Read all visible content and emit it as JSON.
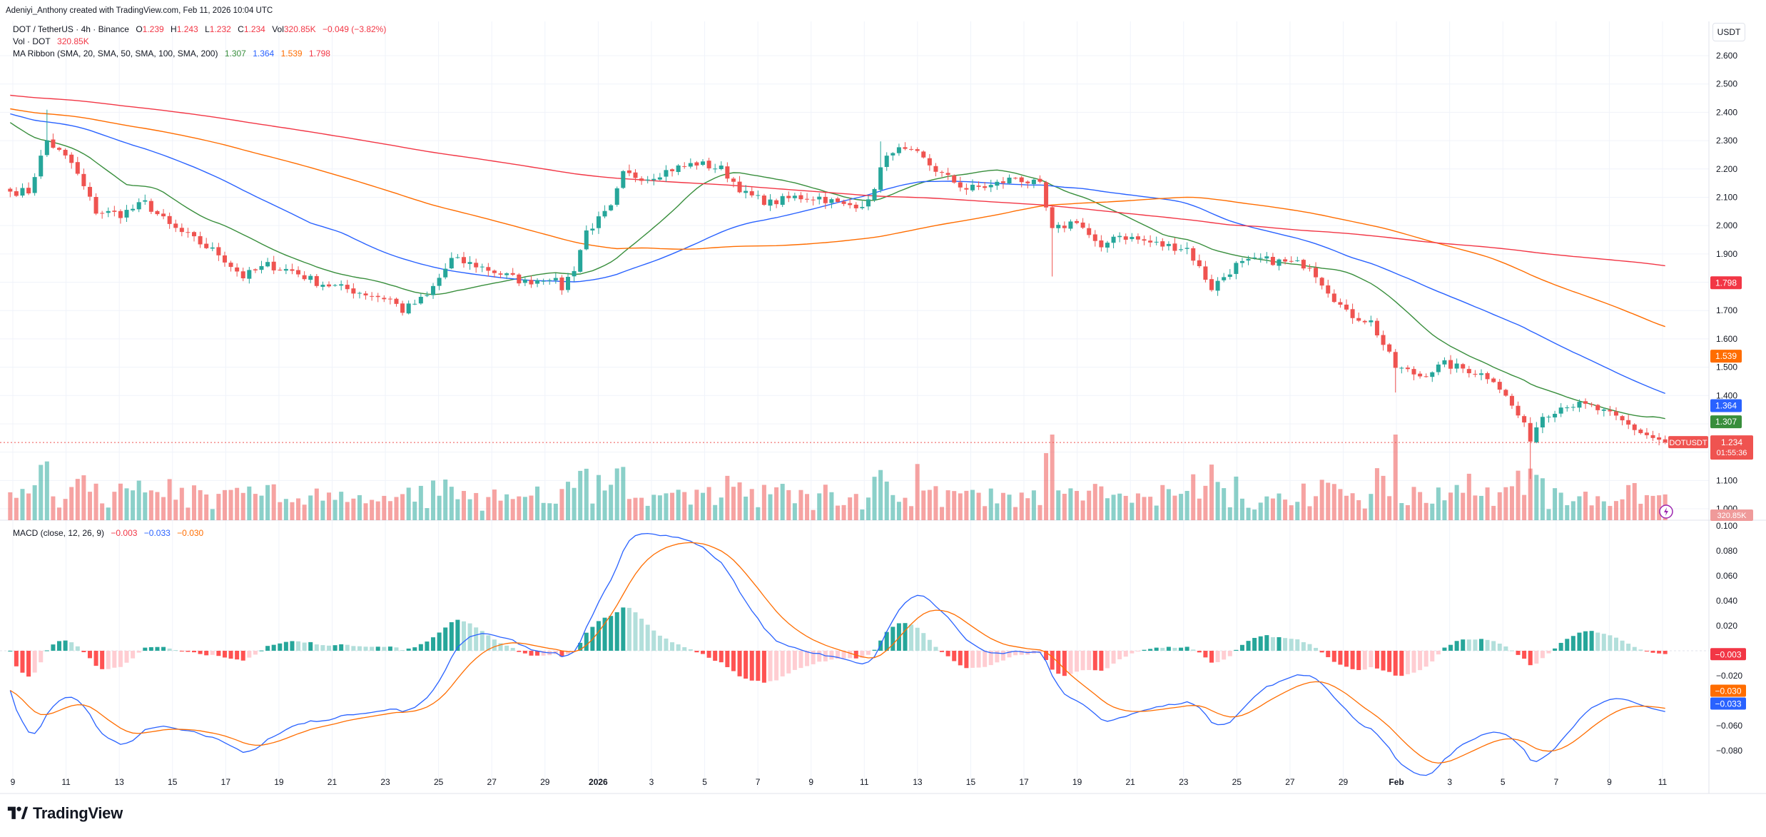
{
  "header": {
    "creator": "Adeniyi_Anthony created with TradingView.com, Feb 11, 2026 10:04 UTC"
  },
  "legend": {
    "symbol": "DOT / TetherUS · 4h · Binance",
    "o_label": "O",
    "o_value": "1.239",
    "h_label": "H",
    "h_value": "1.243",
    "l_label": "L",
    "l_value": "1.232",
    "c_label": "C",
    "c_value": "1.234",
    "vol_label": "Vol",
    "vol_value": "320.85K",
    "change": "−0.049 (−3.82%)",
    "vol_title": "Vol · DOT",
    "vol_title_value": "320.85K",
    "ma_title": "MA Ribbon (SMA, 20, SMA, 50, SMA, 100, SMA, 200)",
    "ma_v1": "1.307",
    "ma_v2": "1.364",
    "ma_v3": "1.539",
    "ma_v4": "1.798",
    "macd_title": "MACD (close, 12, 26, 9)",
    "macd_v1": "−0.003",
    "macd_v2": "−0.033",
    "macd_v3": "−0.030"
  },
  "currency_button": "USDT",
  "logo_text": "TradingView",
  "colors": {
    "up": "#26a69a",
    "down": "#ef5350",
    "sma20": "#388e3c",
    "sma50": "#2962ff",
    "sma100": "#ff6d00",
    "sma200": "#f23645",
    "macd": "#2962ff",
    "signal": "#ff6d00"
  },
  "chart_data": {
    "type": "candlestick",
    "symbol": "DOTUSDT",
    "timeframe": "4h",
    "price_axis": {
      "ticks": [
        "2.600",
        "2.500",
        "2.400",
        "2.300",
        "2.200",
        "2.100",
        "2.000",
        "1.900",
        "1.800",
        "1.700",
        "1.600",
        "1.500",
        "1.400",
        "1.300",
        "1.200",
        "1.100",
        "1.000"
      ],
      "ylim": [
        1.0,
        2.6
      ]
    },
    "price_badges": [
      {
        "label": "1.798",
        "value": 1.798,
        "color": "#f23645"
      },
      {
        "label": "1.539",
        "value": 1.539,
        "color": "#ff6d00"
      },
      {
        "label": "1.364",
        "value": 1.364,
        "color": "#2962ff"
      },
      {
        "label": "1.307",
        "value": 1.307,
        "color": "#388e3c"
      }
    ],
    "last_price": {
      "symbol_tag": "DOTUSDT",
      "value": "1.234",
      "countdown": "01:55:36"
    },
    "volume_badge": "320.85K",
    "macd_axis": {
      "ticks": [
        "0.100",
        "0.080",
        "0.060",
        "0.040",
        "0.020",
        "−0.020",
        "−0.040",
        "−0.060",
        "−0.080"
      ],
      "ylim": [
        -0.095,
        0.1
      ]
    },
    "macd_badges": [
      {
        "label": "−0.003",
        "color": "#f23645"
      },
      {
        "label": "−0.030",
        "color": "#ff6d00"
      },
      {
        "label": "−0.033",
        "color": "#2962ff"
      }
    ],
    "x_ticks": [
      "9",
      "11",
      "13",
      "15",
      "17",
      "19",
      "21",
      "23",
      "25",
      "27",
      "29",
      "2026",
      "3",
      "5",
      "7",
      "9",
      "11",
      "13",
      "15",
      "17",
      "19",
      "21",
      "23",
      "25",
      "27",
      "29",
      "Feb",
      "3",
      "5",
      "7",
      "9",
      "11"
    ],
    "close_anchors": [
      [
        0,
        2.12
      ],
      [
        3,
        2.12
      ],
      [
        6,
        2.3
      ],
      [
        10,
        2.22
      ],
      [
        14,
        2.05
      ],
      [
        18,
        2.04
      ],
      [
        22,
        2.08
      ],
      [
        26,
        2.0
      ],
      [
        30,
        1.95
      ],
      [
        34,
        1.9
      ],
      [
        38,
        1.82
      ],
      [
        42,
        1.86
      ],
      [
        46,
        1.84
      ],
      [
        50,
        1.8
      ],
      [
        54,
        1.78
      ],
      [
        58,
        1.76
      ],
      [
        62,
        1.74
      ],
      [
        64,
        1.7
      ],
      [
        68,
        1.75
      ],
      [
        72,
        1.88
      ],
      [
        76,
        1.86
      ],
      [
        80,
        1.83
      ],
      [
        84,
        1.8
      ],
      [
        88,
        1.82
      ],
      [
        90,
        1.78
      ],
      [
        92,
        1.85
      ],
      [
        94,
        1.98
      ],
      [
        98,
        2.06
      ],
      [
        100,
        2.18
      ],
      [
        104,
        2.17
      ],
      [
        108,
        2.2
      ],
      [
        112,
        2.22
      ],
      [
        116,
        2.2
      ],
      [
        120,
        2.11
      ],
      [
        124,
        2.08
      ],
      [
        128,
        2.1
      ],
      [
        132,
        2.1
      ],
      [
        136,
        2.07
      ],
      [
        140,
        2.08
      ],
      [
        142,
        2.2
      ],
      [
        144,
        2.27
      ],
      [
        148,
        2.25
      ],
      [
        152,
        2.18
      ],
      [
        156,
        2.13
      ],
      [
        160,
        2.14
      ],
      [
        164,
        2.17
      ],
      [
        168,
        2.14
      ],
      [
        170,
        1.98
      ],
      [
        174,
        2.02
      ],
      [
        178,
        1.91
      ],
      [
        180,
        1.97
      ],
      [
        184,
        1.95
      ],
      [
        188,
        1.93
      ],
      [
        192,
        1.92
      ],
      [
        196,
        1.78
      ],
      [
        200,
        1.86
      ],
      [
        204,
        1.88
      ],
      [
        208,
        1.87
      ],
      [
        212,
        1.86
      ],
      [
        214,
        1.8
      ],
      [
        218,
        1.69
      ],
      [
        222,
        1.66
      ],
      [
        226,
        1.5
      ],
      [
        230,
        1.47
      ],
      [
        234,
        1.51
      ],
      [
        238,
        1.49
      ],
      [
        242,
        1.46
      ],
      [
        246,
        1.33
      ],
      [
        248,
        1.25
      ],
      [
        250,
        1.33
      ],
      [
        254,
        1.37
      ],
      [
        258,
        1.36
      ],
      [
        262,
        1.32
      ],
      [
        266,
        1.27
      ],
      [
        268,
        1.25
      ],
      [
        270,
        1.234
      ]
    ],
    "n_candles": 271,
    "indicators": [
      "SMA 20",
      "SMA 50",
      "SMA 100",
      "SMA 200",
      "Volume",
      "MACD (12,26,9)"
    ]
  }
}
